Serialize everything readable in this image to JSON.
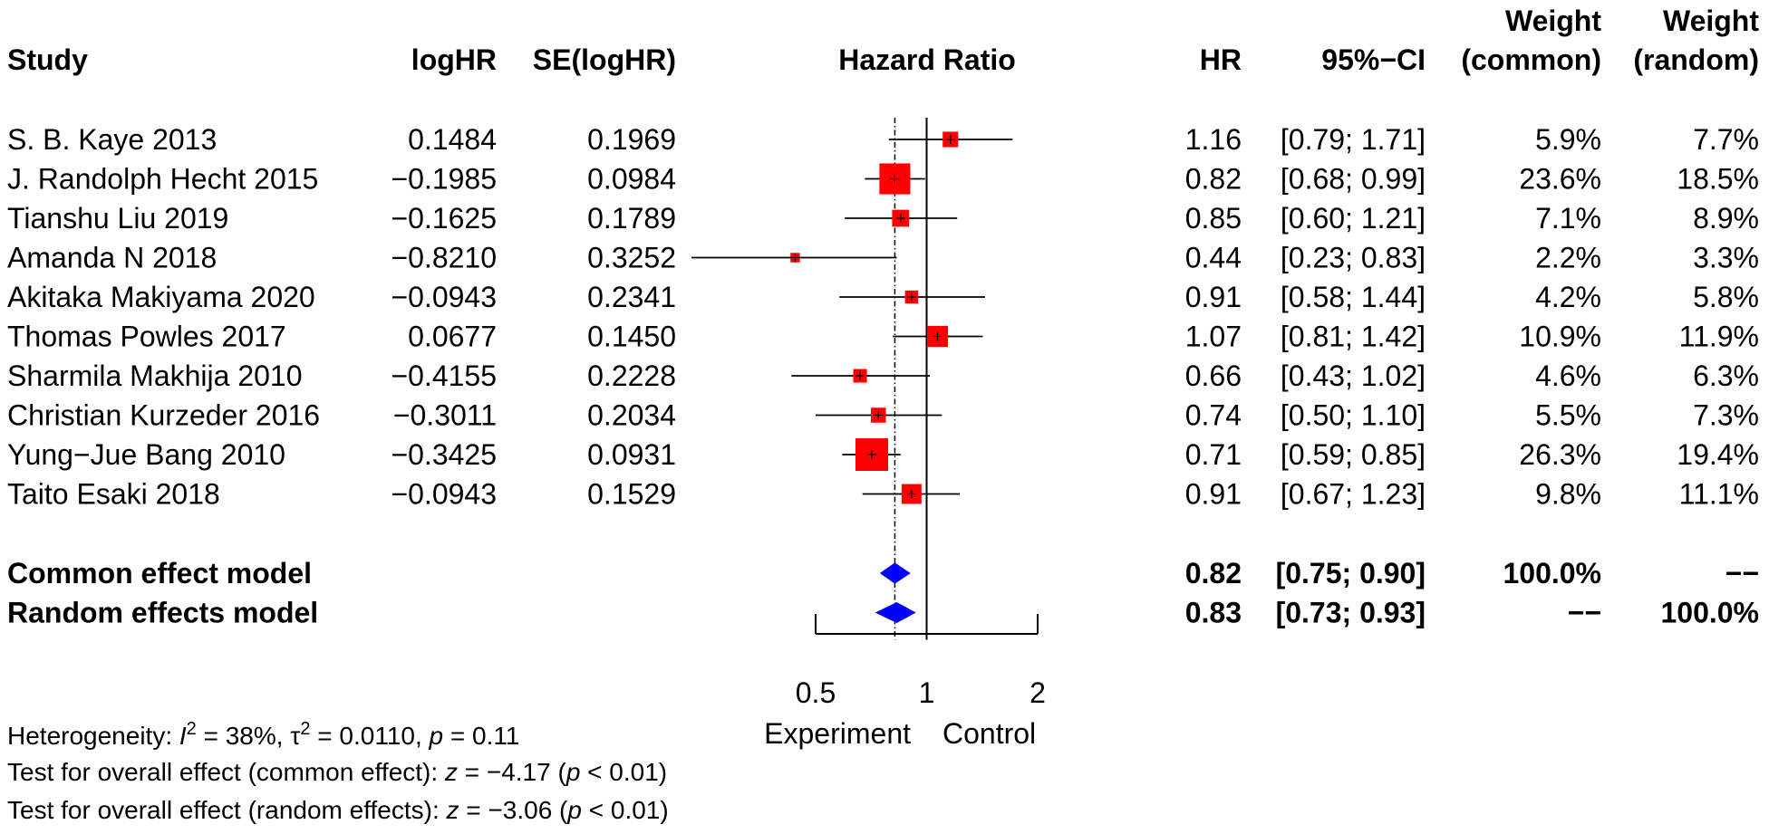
{
  "headers": {
    "study": "Study",
    "loghr": "logHR",
    "se": "SE(logHR)",
    "plot": "Hazard Ratio",
    "hr": "HR",
    "ci": "95%−CI",
    "w_common_1": "Weight",
    "w_common_2": "(common)",
    "w_random_1": "Weight",
    "w_random_2": "(random)"
  },
  "chart_data": {
    "type": "forest",
    "x_scale": "log",
    "xlim": [
      0.5,
      2
    ],
    "ticks": [
      "0.5",
      "1",
      "2"
    ],
    "tick_values": [
      0.5,
      1,
      2
    ],
    "null_value": 1,
    "pooled_line": 0.82,
    "xlabel_left": "Experiment",
    "xlabel_right": "Control",
    "studies": [
      {
        "name": "S. B. Kaye 2013",
        "logHR": "0.1484",
        "se": "0.1969",
        "hr": "1.16",
        "ci": "[0.79; 1.71]",
        "hr_val": 1.16,
        "lo": 0.79,
        "hi": 1.71,
        "w_common": "5.9%",
        "w_random": "7.7%",
        "w_val": 5.9
      },
      {
        "name": "J. Randolph Hecht 2015",
        "logHR": "−0.1985",
        "se": "0.0984",
        "hr": "0.82",
        "ci": "[0.68; 0.99]",
        "hr_val": 0.82,
        "lo": 0.68,
        "hi": 0.99,
        "w_common": "23.6%",
        "w_random": "18.5%",
        "w_val": 23.6
      },
      {
        "name": "Tianshu Liu 2019",
        "logHR": "−0.1625",
        "se": "0.1789",
        "hr": "0.85",
        "ci": "[0.60; 1.21]",
        "hr_val": 0.85,
        "lo": 0.6,
        "hi": 1.21,
        "w_common": "7.1%",
        "w_random": "8.9%",
        "w_val": 7.1
      },
      {
        "name": "Amanda N 2018",
        "logHR": "−0.8210",
        "se": "0.3252",
        "hr": "0.44",
        "ci": "[0.23; 0.83]",
        "hr_val": 0.44,
        "lo": 0.23,
        "hi": 0.83,
        "w_common": "2.2%",
        "w_random": "3.3%",
        "w_val": 2.2
      },
      {
        "name": "Akitaka Makiyama 2020",
        "logHR": "−0.0943",
        "se": "0.2341",
        "hr": "0.91",
        "ci": "[0.58; 1.44]",
        "hr_val": 0.91,
        "lo": 0.58,
        "hi": 1.44,
        "w_common": "4.2%",
        "w_random": "5.8%",
        "w_val": 4.2
      },
      {
        "name": "Thomas Powles 2017",
        "logHR": "0.0677",
        "se": "0.1450",
        "hr": "1.07",
        "ci": "[0.81; 1.42]",
        "hr_val": 1.07,
        "lo": 0.81,
        "hi": 1.42,
        "w_common": "10.9%",
        "w_random": "11.9%",
        "w_val": 10.9
      },
      {
        "name": "Sharmila Makhija 2010",
        "logHR": "−0.4155",
        "se": "0.2228",
        "hr": "0.66",
        "ci": "[0.43; 1.02]",
        "hr_val": 0.66,
        "lo": 0.43,
        "hi": 1.02,
        "w_common": "4.6%",
        "w_random": "6.3%",
        "w_val": 4.6
      },
      {
        "name": "Christian Kurzeder 2016",
        "logHR": "−0.3011",
        "se": "0.2034",
        "hr": "0.74",
        "ci": "[0.50; 1.10]",
        "hr_val": 0.74,
        "lo": 0.5,
        "hi": 1.1,
        "w_common": "5.5%",
        "w_random": "7.3%",
        "w_val": 5.5
      },
      {
        "name": "Yung−Jue Bang  2010",
        "logHR": "−0.3425",
        "se": "0.0931",
        "hr": "0.71",
        "ci": "[0.59; 0.85]",
        "hr_val": 0.71,
        "lo": 0.59,
        "hi": 0.85,
        "w_common": "26.3%",
        "w_random": "19.4%",
        "w_val": 26.3
      },
      {
        "name": "Taito Esaki 2018",
        "logHR": "−0.0943",
        "se": "0.1529",
        "hr": "0.91",
        "ci": "[0.67; 1.23]",
        "hr_val": 0.91,
        "lo": 0.67,
        "hi": 1.23,
        "w_common": "9.8%",
        "w_random": "11.1%",
        "w_val": 9.8
      }
    ],
    "models": [
      {
        "name": "Common effect model",
        "hr": "0.82",
        "ci": "[0.75; 0.90]",
        "hr_val": 0.82,
        "lo": 0.75,
        "hi": 0.9,
        "w_common": "100.0%",
        "w_random": "−−"
      },
      {
        "name": "Random effects model",
        "hr": "0.83",
        "ci": "[0.73; 0.93]",
        "hr_val": 0.83,
        "lo": 0.73,
        "hi": 0.93,
        "w_common": "−−",
        "w_random": "100.0%"
      }
    ],
    "colors": {
      "box": "#ff0000",
      "diamond": "#0000ff",
      "line": "#000000"
    }
  },
  "footer": {
    "het_prefix": "Heterogeneity: ",
    "het_i": "I",
    "het_sup": "2",
    "het_mid1": " = 38%, ",
    "het_tau": "τ",
    "het_tau_sup": "2",
    "het_mid2": " = 0.0110, ",
    "het_p": "p",
    "het_end": " = 0.11",
    "test_common_prefix": "Test for overall effect (common effect): ",
    "test_common_z": "z",
    "test_common_mid": " = −4.17 (",
    "test_common_p": "p",
    "test_common_end": " < 0.01)",
    "test_random_prefix": "Test for overall effect (random effects): ",
    "test_random_z": "z",
    "test_random_mid": " = −3.06 (",
    "test_random_p": "p",
    "test_random_end": " < 0.01)"
  }
}
